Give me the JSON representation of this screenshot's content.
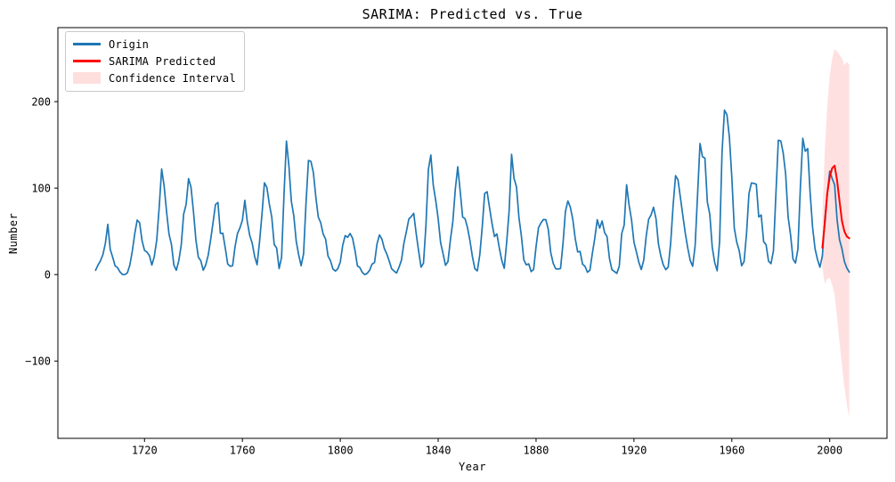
{
  "figure": {
    "title": "SARIMA: Predicted vs. True",
    "xlabel": "Year",
    "ylabel": "Number"
  },
  "legend": {
    "entries": [
      {
        "label": "Origin",
        "type": "line",
        "color": "#1f77b4"
      },
      {
        "label": "SARIMA Predicted",
        "type": "line",
        "color": "#ff0000"
      },
      {
        "label": "Confidence Interval",
        "type": "patch",
        "color": "#ff0000",
        "opacity": 0.13
      }
    ]
  },
  "chart_data": {
    "type": "line",
    "title": "SARIMA: Predicted vs. True",
    "xlabel": "Year",
    "ylabel": "Number",
    "xlim": [
      1684.6,
      2023.4
    ],
    "ylim": [
      -189.4,
      285.6
    ],
    "x_ticks": [
      1720,
      1760,
      1800,
      1840,
      1880,
      1920,
      1960,
      2000
    ],
    "y_ticks": [
      -100,
      0,
      100,
      200
    ],
    "grid": false,
    "legend_position": "upper left",
    "axis_color": "#000000",
    "series": [
      {
        "name": "Origin",
        "color": "#1f77b4",
        "line_width": 1.7,
        "x_start": 1700,
        "x_step": 1,
        "values": [
          5,
          11,
          16,
          23,
          36,
          58,
          29,
          20,
          10,
          8,
          3,
          0,
          0,
          2,
          11,
          27,
          47,
          63,
          60,
          39,
          28,
          26,
          22,
          11,
          21,
          40,
          78,
          122,
          103,
          73,
          47,
          35,
          11,
          5,
          16,
          34,
          70,
          81,
          111,
          101,
          73,
          40,
          20,
          16,
          5,
          11,
          22,
          40,
          60,
          80.9,
          83.4,
          47.7,
          47.8,
          30.7,
          12.2,
          9.6,
          10.2,
          32.4,
          47.6,
          54,
          62.9,
          85.9,
          61.2,
          45.1,
          36.4,
          20.9,
          11.4,
          37.8,
          69.8,
          106.1,
          100.8,
          81.6,
          66.5,
          34.8,
          30.6,
          7,
          19.8,
          92.5,
          154.4,
          125.9,
          84.8,
          68.1,
          38.5,
          22.8,
          10.2,
          24.1,
          82.9,
          132,
          130.9,
          118.1,
          89.9,
          66.6,
          60,
          46.9,
          41,
          21.3,
          16,
          6.4,
          4.1,
          6.8,
          14.5,
          34,
          45,
          43.1,
          47.5,
          42.2,
          28.1,
          10.1,
          8.1,
          2.5,
          0,
          1.4,
          5,
          12.2,
          13.9,
          35.4,
          45.8,
          41.1,
          30.1,
          23.9,
          15.6,
          6.6,
          4,
          1.8,
          8.5,
          16.6,
          36.3,
          49.6,
          64.2,
          67,
          70.9,
          47.8,
          27.5,
          8.5,
          13.2,
          56.9,
          121.5,
          138.3,
          103.2,
          85.7,
          64.6,
          36.7,
          24.2,
          10.7,
          15,
          40.1,
          61.5,
          98.5,
          124.7,
          96.3,
          66.6,
          64.5,
          54.1,
          39,
          20.6,
          6.7,
          4.3,
          22.7,
          54.8,
          93.8,
          95.8,
          77.2,
          59.1,
          44,
          47,
          30.5,
          16.3,
          7.3,
          37.6,
          74,
          139,
          111.2,
          101.6,
          66.2,
          44.7,
          17,
          11.3,
          12.4,
          3.4,
          6,
          32.3,
          54.3,
          59.7,
          63.7,
          63.5,
          52.2,
          25.4,
          13.1,
          6.8,
          6.3,
          7.1,
          35.6,
          73,
          85.1,
          78,
          64,
          41.8,
          26.2,
          26.7,
          12.1,
          9.5,
          2.7,
          5,
          24.4,
          42,
          63.5,
          53.8,
          62,
          48.5,
          43.9,
          18.6,
          5.7,
          3.6,
          1.4,
          9.6,
          47.4,
          57.1,
          103.9,
          80.6,
          63.6,
          37.6,
          26.1,
          14.2,
          5.8,
          16.7,
          44.3,
          63.9,
          69,
          77.8,
          64.9,
          35.7,
          21.2,
          11.1,
          5.7,
          8.7,
          36.1,
          79.7,
          114.4,
          109.6,
          88.8,
          67.8,
          47.5,
          30.6,
          16.3,
          9.6,
          33.2,
          92.6,
          151.6,
          136.3,
          134.7,
          83.9,
          69.4,
          31.5,
          13.9,
          4.4,
          38,
          141.7,
          190.2,
          184.8,
          159,
          112.3,
          53.9,
          37.5,
          27.9,
          10.2,
          15.1,
          47,
          93.8,
          105.9,
          105.5,
          104.5,
          66.6,
          68.9,
          38,
          34.5,
          15.5,
          12.6,
          27.5,
          92.5,
          155.4,
          154.6,
          140.4,
          115.9,
          66.6,
          45.9,
          17.9,
          13.4,
          29.4,
          100.2,
          157.6,
          142.6,
          145.7,
          94.3,
          54.6,
          29.9,
          17.5,
          8.6,
          21.5,
          64.3,
          93.3,
          119.6,
          111,
          104,
          63.7,
          40.4,
          29.8,
          15.2,
          7.5,
          2.9
        ]
      },
      {
        "name": "SARIMA Predicted",
        "color": "#ff0000",
        "line_width": 2,
        "x_start": 1997,
        "x_step": 1,
        "values": [
          31,
          60,
          94,
          113,
          123,
          126,
          109,
          85,
          62,
          50,
          44,
          42
        ]
      }
    ],
    "confidence_interval": {
      "name": "Confidence Interval",
      "x_start": 1997,
      "x_step": 1,
      "upper": [
        70,
        145,
        195,
        230,
        250,
        261,
        258,
        254,
        250,
        242,
        246,
        243
      ],
      "lower": [
        8,
        -11,
        -5,
        -4,
        -12,
        -23,
        -50,
        -78,
        -105,
        -130,
        -150,
        -166
      ],
      "fill_color": "#ff0000",
      "fill_opacity": 0.12
    }
  }
}
